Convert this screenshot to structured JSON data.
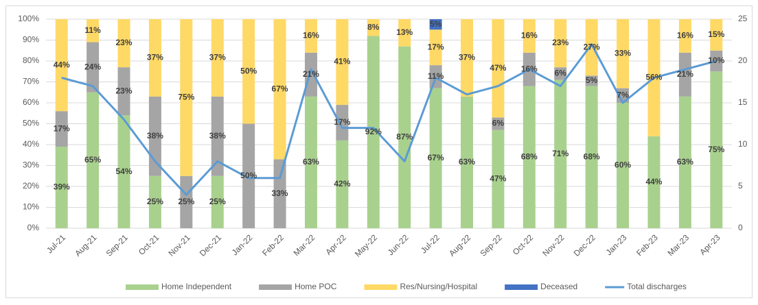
{
  "chart_data": {
    "type": "stacked-bar-line",
    "categories": [
      "Jul-21",
      "Aug-21",
      "Sep-21",
      "Oct-21",
      "Nov-21",
      "Dec-21",
      "Jan-22",
      "Feb-22",
      "Mar-22",
      "Apr-22",
      "May-22",
      "Jun-22",
      "Jul-22",
      "Aug-22",
      "Sep-22",
      "Oct-22",
      "Nov-22",
      "Dec-22",
      "Jan-23",
      "Feb-23",
      "Mar-23",
      "Apr-23"
    ],
    "series": [
      {
        "name": "Home Independent",
        "color": "#a9d18e",
        "type": "bar",
        "values": [
          39,
          65,
          54,
          25,
          null,
          25,
          null,
          null,
          63,
          42,
          92,
          87,
          67,
          63,
          47,
          68,
          71,
          68,
          60,
          44,
          63,
          75
        ],
        "value_labels": [
          "39%",
          "65%",
          "54%",
          "25%",
          null,
          "25%",
          null,
          null,
          "63%",
          "42%",
          "92%",
          "87%",
          "67%",
          "63%",
          "47%",
          "68%",
          "71%",
          "68%",
          "60%",
          "44%",
          "63%",
          "75%"
        ]
      },
      {
        "name": "Home POC",
        "color": "#a5a5a5",
        "type": "bar",
        "values": [
          17,
          24,
          23,
          38,
          25,
          38,
          50,
          33,
          21,
          17,
          null,
          null,
          11,
          null,
          6,
          16,
          6,
          5,
          7,
          null,
          21,
          10
        ],
        "value_labels": [
          "17%",
          "24%",
          "23%",
          "38%",
          "25%",
          "38%",
          "50%",
          "33%",
          "21%",
          "17%",
          null,
          null,
          "11%",
          null,
          "6%",
          "16%",
          "6%",
          "5%",
          "7%",
          null,
          "21%",
          "10%"
        ]
      },
      {
        "name": "Res/Nursing/Hospital",
        "color": "#ffd966",
        "type": "bar",
        "values": [
          44,
          11,
          23,
          37,
          75,
          37,
          50,
          67,
          16,
          41,
          8,
          13,
          17,
          37,
          47,
          16,
          23,
          27,
          33,
          56,
          16,
          15
        ],
        "value_labels": [
          "44%",
          "11%",
          "23%",
          "37%",
          "75%",
          "37%",
          "50%",
          "67%",
          "16%",
          "41%",
          "8%",
          "13%",
          "17%",
          "37%",
          "47%",
          "16%",
          "23%",
          "27%",
          "33%",
          "56%",
          "16%",
          "15%"
        ]
      },
      {
        "name": "Deceased",
        "color": "#4472c4",
        "type": "bar",
        "values": [
          null,
          null,
          null,
          null,
          null,
          null,
          null,
          null,
          null,
          null,
          null,
          null,
          5,
          null,
          null,
          null,
          null,
          null,
          null,
          null,
          null,
          null
        ],
        "value_labels": [
          null,
          null,
          null,
          null,
          null,
          null,
          null,
          null,
          null,
          null,
          null,
          null,
          "5%",
          null,
          null,
          null,
          null,
          null,
          null,
          null,
          null,
          null
        ]
      },
      {
        "name": "Total discharges",
        "color": "#5b9bd5",
        "type": "line",
        "axis": "y2",
        "values": [
          18,
          17,
          13,
          8,
          4,
          8,
          6,
          6,
          19,
          12,
          12,
          8,
          18,
          16,
          17,
          19,
          17,
          22,
          15,
          18,
          19,
          20
        ]
      }
    ],
    "ylim": [
      0,
      100
    ],
    "yticks": [
      {
        "value": 0,
        "label": "0%"
      },
      {
        "value": 10,
        "label": "10%"
      },
      {
        "value": 20,
        "label": "20%"
      },
      {
        "value": 30,
        "label": "30%"
      },
      {
        "value": 40,
        "label": "40%"
      },
      {
        "value": 50,
        "label": "50%"
      },
      {
        "value": 60,
        "label": "60%"
      },
      {
        "value": 70,
        "label": "70%"
      },
      {
        "value": 80,
        "label": "80%"
      },
      {
        "value": 90,
        "label": "90%"
      },
      {
        "value": 100,
        "label": "100%"
      }
    ],
    "y2lim": [
      0,
      25
    ],
    "y2ticks": [
      0,
      5,
      10,
      15,
      20,
      25
    ],
    "legend": "bottom"
  }
}
